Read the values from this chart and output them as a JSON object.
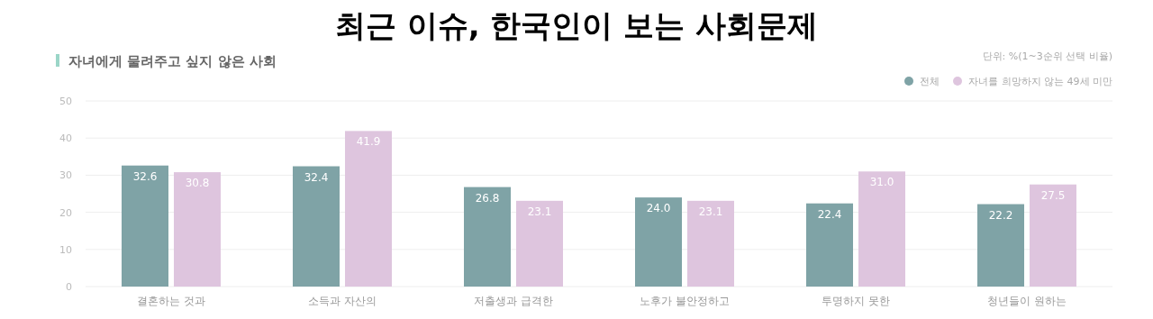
{
  "chart_data": {
    "type": "bar",
    "title": "최근 이슈, 한국인이 보는 사회문제",
    "subtitle": "자녀에게 물려주고 싶지 않은 사회",
    "annotations": [
      "단위: %(1~3순위 선택 비율)"
    ],
    "categories": [
      "결혼하는 것과",
      "소득과 자산의",
      "저출생과 급격한",
      "노후가 불안정하고",
      "투명하지 못한",
      "청년들이 원하는"
    ],
    "series": [
      {
        "name": "전체",
        "color": "#7fa3a6",
        "values": [
          32.6,
          32.4,
          26.8,
          24.0,
          22.4,
          22.2
        ],
        "value_labels": [
          "32.6",
          "32.4",
          "26.8",
          "24.0",
          "22.4",
          "22.2"
        ]
      },
      {
        "name": "자녀를 희망하지 않는 49세 미만",
        "color": "#dec5de",
        "values": [
          30.8,
          41.9,
          23.1,
          23.1,
          31.0,
          27.5
        ],
        "value_labels": [
          "30.8",
          "41.9",
          "23.1",
          "23.1",
          "31.0",
          "27.5"
        ]
      }
    ],
    "ylim": [
      0,
      50
    ],
    "yticks": [
      0,
      10,
      20,
      30,
      40,
      50
    ],
    "grid": "y",
    "legend": "top right"
  }
}
